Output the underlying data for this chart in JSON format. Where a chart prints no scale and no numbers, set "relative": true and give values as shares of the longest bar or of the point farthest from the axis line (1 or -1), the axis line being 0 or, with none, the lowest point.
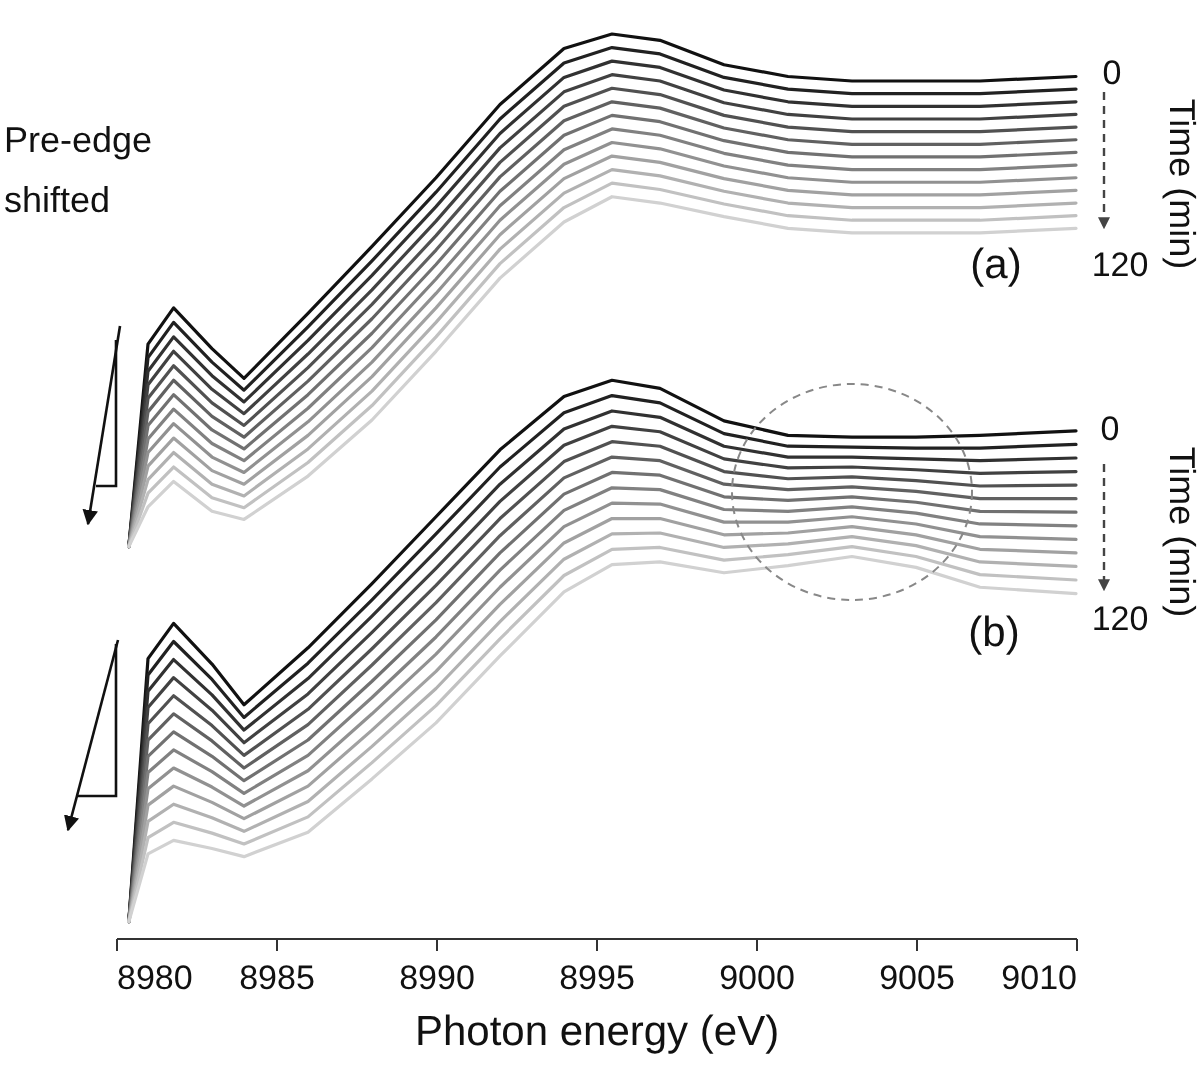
{
  "chart_data": {
    "type": "line",
    "relative": true,
    "xlabel": "Photon energy (eV)",
    "xlim": [
      8980,
      9010
    ],
    "xticks": [
      8980,
      8985,
      8990,
      8995,
      9000,
      9005,
      9010
    ],
    "x": [
      8980.4,
      8981,
      8981.8,
      8983,
      8984,
      8986,
      8988,
      8990,
      8992,
      8994,
      8995.5,
      8997,
      8999,
      9001,
      9003,
      9005,
      9007,
      9010
    ],
    "annotations": [
      "Pre-edge shifted",
      "(a)",
      "0",
      "120",
      "Time (min)",
      "(b)",
      "0",
      "120",
      "Time (min)"
    ],
    "series": [
      {
        "color": "#111111",
        "values": [
          0.433,
          0.657,
          0.697,
          0.652,
          0.619,
          0.691,
          0.765,
          0.841,
          0.922,
          0.984,
          1.0,
          0.993,
          0.966,
          0.953,
          0.948,
          0.948,
          0.948,
          0.953
        ]
      },
      {
        "color": "#212121",
        "values": [
          0.433,
          0.642,
          0.681,
          0.637,
          0.606,
          0.676,
          0.749,
          0.825,
          0.906,
          0.968,
          0.985,
          0.978,
          0.952,
          0.939,
          0.934,
          0.934,
          0.934,
          0.939
        ]
      },
      {
        "color": "#313131",
        "values": [
          0.433,
          0.627,
          0.665,
          0.622,
          0.593,
          0.661,
          0.733,
          0.809,
          0.89,
          0.952,
          0.97,
          0.963,
          0.938,
          0.925,
          0.92,
          0.92,
          0.92,
          0.925
        ]
      },
      {
        "color": "#414141",
        "values": [
          0.433,
          0.612,
          0.649,
          0.607,
          0.58,
          0.646,
          0.717,
          0.793,
          0.874,
          0.936,
          0.955,
          0.948,
          0.924,
          0.911,
          0.906,
          0.906,
          0.906,
          0.911
        ]
      },
      {
        "color": "#515151",
        "values": [
          0.433,
          0.597,
          0.633,
          0.592,
          0.567,
          0.631,
          0.701,
          0.777,
          0.858,
          0.92,
          0.94,
          0.933,
          0.91,
          0.897,
          0.892,
          0.892,
          0.892,
          0.897
        ]
      },
      {
        "color": "#616161",
        "values": [
          0.433,
          0.582,
          0.617,
          0.577,
          0.554,
          0.616,
          0.685,
          0.761,
          0.842,
          0.904,
          0.925,
          0.918,
          0.896,
          0.883,
          0.878,
          0.878,
          0.878,
          0.883
        ]
      },
      {
        "color": "#717171",
        "values": [
          0.433,
          0.567,
          0.601,
          0.562,
          0.541,
          0.601,
          0.669,
          0.745,
          0.826,
          0.888,
          0.91,
          0.903,
          0.882,
          0.869,
          0.864,
          0.864,
          0.864,
          0.869
        ]
      },
      {
        "color": "#818181",
        "values": [
          0.433,
          0.552,
          0.585,
          0.547,
          0.528,
          0.586,
          0.653,
          0.729,
          0.81,
          0.872,
          0.895,
          0.888,
          0.868,
          0.855,
          0.85,
          0.85,
          0.85,
          0.855
        ]
      },
      {
        "color": "#919191",
        "values": [
          0.433,
          0.537,
          0.569,
          0.532,
          0.515,
          0.571,
          0.637,
          0.713,
          0.794,
          0.856,
          0.88,
          0.873,
          0.854,
          0.841,
          0.836,
          0.836,
          0.836,
          0.841
        ]
      },
      {
        "color": "#a1a1a1",
        "values": [
          0.433,
          0.522,
          0.553,
          0.517,
          0.502,
          0.556,
          0.621,
          0.697,
          0.778,
          0.84,
          0.865,
          0.858,
          0.84,
          0.827,
          0.822,
          0.822,
          0.822,
          0.827
        ]
      },
      {
        "color": "#b1b1b1",
        "values": [
          0.433,
          0.507,
          0.537,
          0.502,
          0.489,
          0.541,
          0.605,
          0.681,
          0.762,
          0.824,
          0.85,
          0.843,
          0.826,
          0.813,
          0.808,
          0.808,
          0.808,
          0.813
        ]
      },
      {
        "color": "#c1c1c1",
        "values": [
          0.433,
          0.492,
          0.521,
          0.487,
          0.476,
          0.526,
          0.589,
          0.665,
          0.746,
          0.808,
          0.835,
          0.828,
          0.812,
          0.799,
          0.794,
          0.794,
          0.794,
          0.799
        ]
      },
      {
        "color": "#d1d1d1",
        "values": [
          0.433,
          0.477,
          0.505,
          0.472,
          0.463,
          0.511,
          0.573,
          0.649,
          0.73,
          0.792,
          0.82,
          0.813,
          0.798,
          0.785,
          0.78,
          0.78,
          0.78,
          0.785
        ]
      },
      {
        "color": "#111111",
        "values": [
          0.018,
          0.309,
          0.348,
          0.303,
          0.258,
          0.321,
          0.392,
          0.466,
          0.54,
          0.599,
          0.617,
          0.608,
          0.572,
          0.556,
          0.554,
          0.554,
          0.556,
          0.561
        ]
      },
      {
        "color": "#212121",
        "values": [
          0.018,
          0.291,
          0.328,
          0.286,
          0.244,
          0.304,
          0.374,
          0.447,
          0.521,
          0.581,
          0.6,
          0.592,
          0.558,
          0.544,
          0.543,
          0.542,
          0.542,
          0.546
        ]
      },
      {
        "color": "#313131",
        "values": [
          0.018,
          0.273,
          0.308,
          0.269,
          0.23,
          0.287,
          0.356,
          0.428,
          0.502,
          0.563,
          0.583,
          0.576,
          0.544,
          0.532,
          0.532,
          0.53,
          0.528,
          0.531
        ]
      },
      {
        "color": "#414141",
        "values": [
          0.018,
          0.255,
          0.288,
          0.252,
          0.216,
          0.27,
          0.338,
          0.409,
          0.483,
          0.545,
          0.566,
          0.56,
          0.53,
          0.52,
          0.521,
          0.518,
          0.514,
          0.516
        ]
      },
      {
        "color": "#515151",
        "values": [
          0.018,
          0.237,
          0.268,
          0.235,
          0.202,
          0.253,
          0.32,
          0.39,
          0.464,
          0.527,
          0.549,
          0.544,
          0.516,
          0.508,
          0.51,
          0.506,
          0.5,
          0.501
        ]
      },
      {
        "color": "#616161",
        "values": [
          0.018,
          0.219,
          0.248,
          0.218,
          0.188,
          0.236,
          0.302,
          0.371,
          0.445,
          0.509,
          0.532,
          0.528,
          0.502,
          0.496,
          0.499,
          0.494,
          0.486,
          0.486
        ]
      },
      {
        "color": "#717171",
        "values": [
          0.018,
          0.201,
          0.228,
          0.201,
          0.174,
          0.219,
          0.284,
          0.352,
          0.426,
          0.491,
          0.515,
          0.512,
          0.488,
          0.484,
          0.488,
          0.482,
          0.472,
          0.471
        ]
      },
      {
        "color": "#818181",
        "values": [
          0.018,
          0.183,
          0.208,
          0.184,
          0.16,
          0.202,
          0.266,
          0.333,
          0.407,
          0.473,
          0.498,
          0.496,
          0.474,
          0.472,
          0.477,
          0.47,
          0.458,
          0.456
        ]
      },
      {
        "color": "#919191",
        "values": [
          0.018,
          0.165,
          0.188,
          0.167,
          0.146,
          0.185,
          0.248,
          0.314,
          0.388,
          0.455,
          0.481,
          0.48,
          0.46,
          0.46,
          0.466,
          0.458,
          0.444,
          0.441
        ]
      },
      {
        "color": "#a1a1a1",
        "values": [
          0.018,
          0.147,
          0.168,
          0.15,
          0.132,
          0.168,
          0.23,
          0.295,
          0.369,
          0.437,
          0.464,
          0.464,
          0.446,
          0.448,
          0.455,
          0.446,
          0.43,
          0.426
        ]
      },
      {
        "color": "#b1b1b1",
        "values": [
          0.018,
          0.129,
          0.148,
          0.133,
          0.118,
          0.151,
          0.212,
          0.276,
          0.35,
          0.419,
          0.447,
          0.448,
          0.432,
          0.436,
          0.444,
          0.434,
          0.416,
          0.411
        ]
      },
      {
        "color": "#c1c1c1",
        "values": [
          0.018,
          0.111,
          0.128,
          0.116,
          0.104,
          0.134,
          0.194,
          0.257,
          0.331,
          0.401,
          0.43,
          0.432,
          0.418,
          0.424,
          0.433,
          0.422,
          0.402,
          0.396
        ]
      },
      {
        "color": "#d1d1d1",
        "values": [
          0.018,
          0.093,
          0.108,
          0.099,
          0.09,
          0.117,
          0.176,
          0.238,
          0.312,
          0.383,
          0.413,
          0.416,
          0.404,
          0.412,
          0.422,
          0.41,
          0.388,
          0.381
        ]
      }
    ]
  }
}
